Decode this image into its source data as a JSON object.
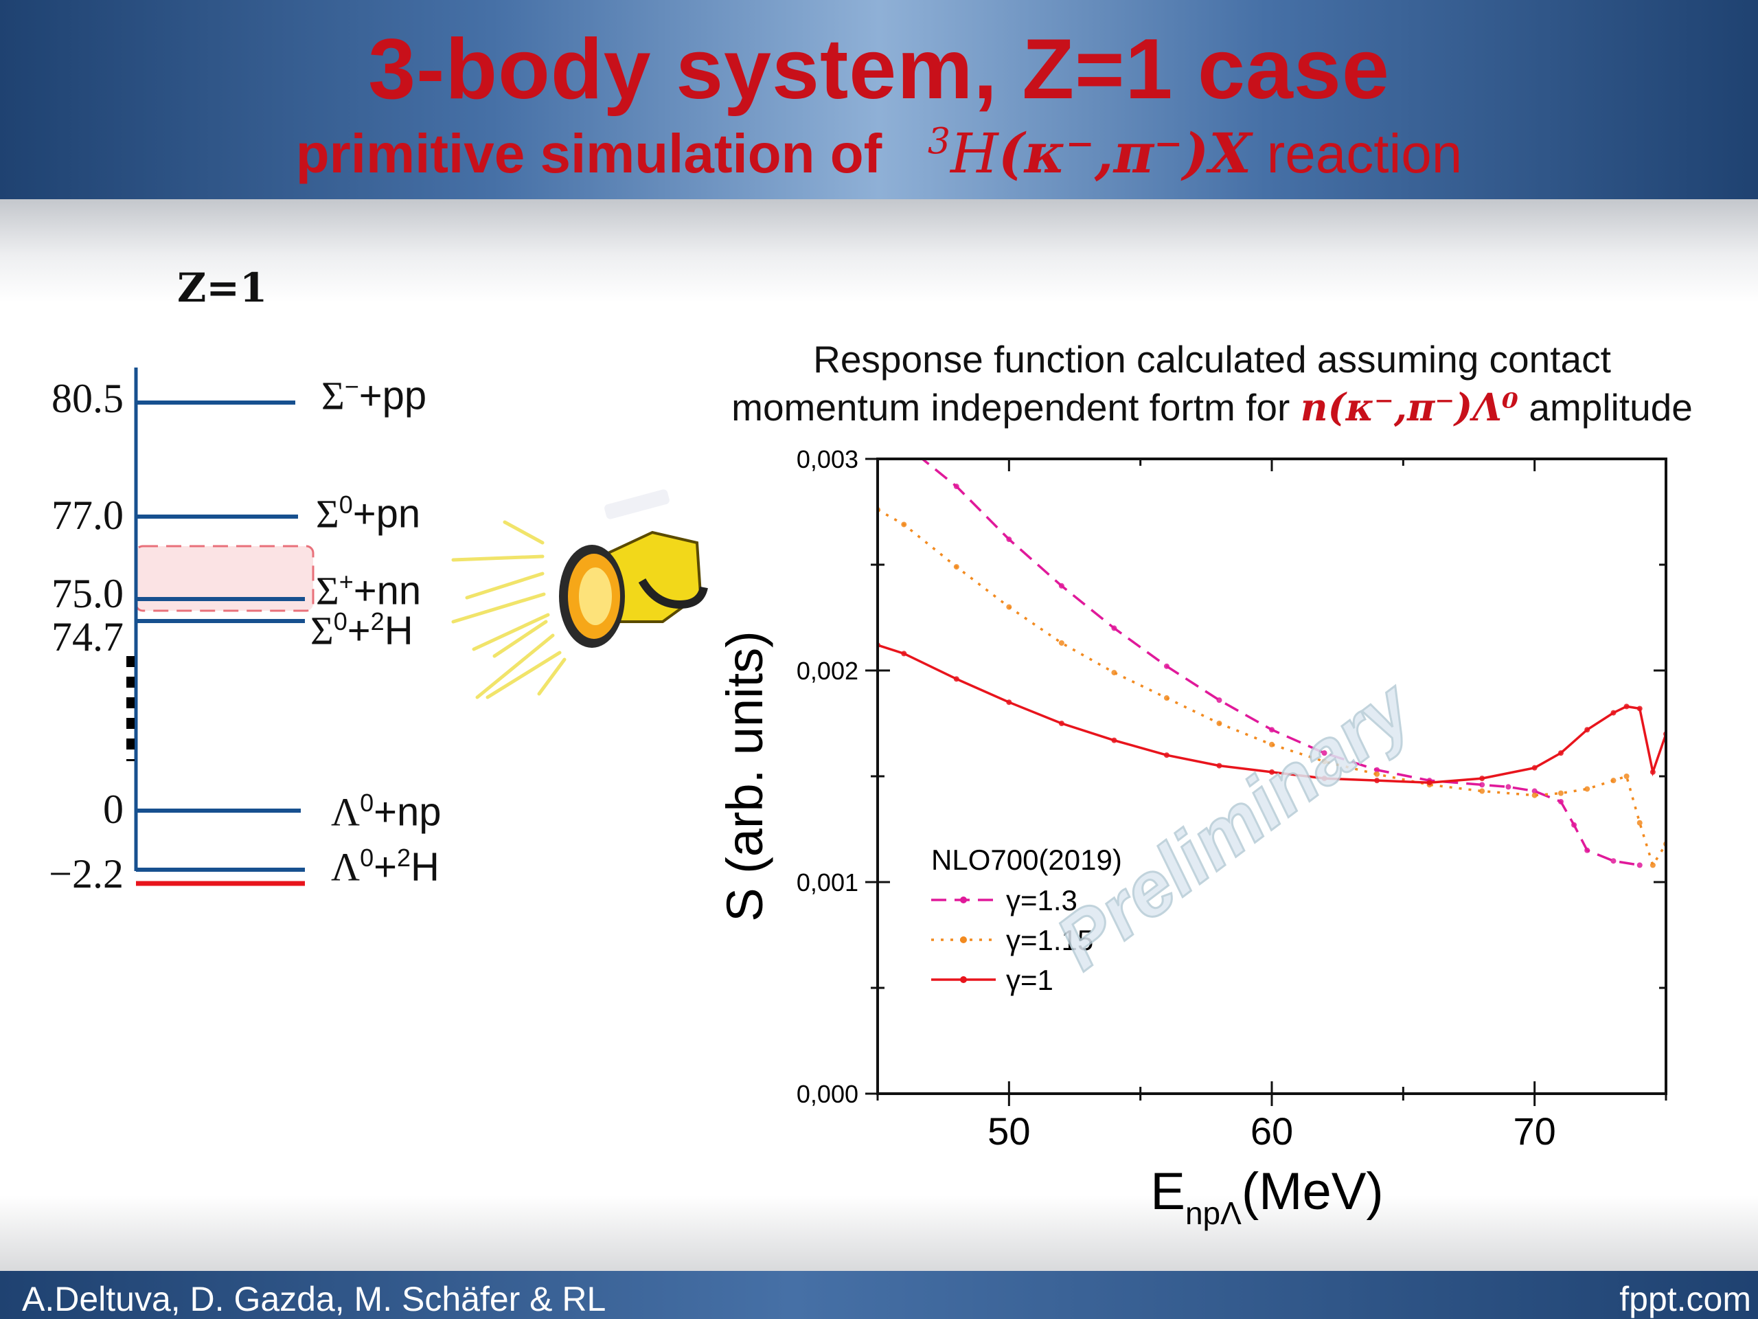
{
  "slide": {
    "title": "3-body system, Z=1 case",
    "subtitle_prefix": "primitive simulation of",
    "reaction_mass": "3",
    "reaction_nucleus": "H",
    "reaction_core": "(κ⁻,π⁻)",
    "reaction_final": "X",
    "subtitle_suffix": "reaction",
    "authors": "A.Deltuva, D. Gazda, M. Schäfer & RL",
    "site": "fppt.com"
  },
  "level_scheme": {
    "heading": "Z=1",
    "energies": [
      "80.5",
      "77.0",
      "75.0",
      "74.7",
      "0",
      "−2.2"
    ],
    "thresholds": [
      {
        "greek": "Σ",
        "sup": "−",
        "rest": "+pp"
      },
      {
        "greek": "Σ",
        "sup": "0",
        "rest": "+pn"
      },
      {
        "greek": "Σ",
        "sup": "+",
        "rest": "+nn"
      },
      {
        "greek": "Σ",
        "sup": "0",
        "rest": "+",
        "sup2": "2",
        "rest2": "H"
      },
      {
        "greek": "Λ",
        "sup": "0",
        "rest": "+np"
      },
      {
        "greek": "Λ",
        "sup": "0",
        "rest": "+",
        "sup2": "2",
        "rest2": "H"
      }
    ],
    "colors": {
      "level": "#17508f",
      "ground": "#e8141c",
      "highlight_fill": "#fbe3e4",
      "highlight_border": "#e8707a"
    }
  },
  "description": {
    "line1": "Response function calculated assuming contact",
    "line2_prefix": "momentum independent fortm for",
    "amplitude": "n(κ⁻,π⁻)Λ⁰",
    "line2_suffix": "amplitude"
  },
  "watermark": "Preliminary",
  "chart_data": {
    "type": "line",
    "xlabel_main": "E",
    "xlabel_sub": "npΛ",
    "xlabel_unit": "(MeV)",
    "ylabel": "S (arb. units)",
    "xlim": [
      45,
      75
    ],
    "ylim": [
      0,
      0.003
    ],
    "x_ticks": [
      "50",
      "60",
      "70"
    ],
    "x_tick_values": [
      50,
      60,
      70
    ],
    "y_ticks": [
      "0,000",
      "0,001",
      "0,002",
      "0,003"
    ],
    "y_tick_values": [
      0,
      0.001,
      0.002,
      0.003
    ],
    "legend_title": "NLO700(2019)",
    "legend_position": "lower-left",
    "series": [
      {
        "name": "γ=1.3",
        "color": "#e0199a",
        "style": "dashed",
        "x": [
          46.5,
          48,
          50,
          52,
          54,
          56,
          58,
          60,
          62,
          64,
          66,
          68,
          69,
          70,
          71,
          71.5,
          72,
          73,
          74
        ],
        "y": [
          0.00302,
          0.00287,
          0.00262,
          0.0024,
          0.0022,
          0.00202,
          0.00186,
          0.00172,
          0.00161,
          0.00153,
          0.00148,
          0.00146,
          0.00145,
          0.00143,
          0.00138,
          0.00127,
          0.00115,
          0.0011,
          0.00108
        ]
      },
      {
        "name": "γ=1.15",
        "color": "#f28a1f",
        "style": "dotted",
        "x": [
          45,
          46,
          48,
          50,
          52,
          54,
          56,
          58,
          60,
          62,
          64,
          66,
          68,
          70,
          71,
          72,
          73,
          73.5,
          74,
          74.5,
          75
        ],
        "y": [
          0.00276,
          0.00269,
          0.00249,
          0.0023,
          0.00213,
          0.00199,
          0.00187,
          0.00175,
          0.00165,
          0.00157,
          0.00151,
          0.00146,
          0.00143,
          0.00141,
          0.00142,
          0.00144,
          0.00148,
          0.0015,
          0.00128,
          0.00108,
          0.00118
        ]
      },
      {
        "name": "γ=1",
        "color": "#e8141c",
        "style": "solid",
        "x": [
          45,
          46,
          48,
          50,
          52,
          54,
          56,
          58,
          60,
          62,
          64,
          66,
          68,
          70,
          71,
          72,
          73,
          73.5,
          74,
          74.5,
          75
        ],
        "y": [
          0.00212,
          0.00208,
          0.00196,
          0.00185,
          0.00175,
          0.00167,
          0.0016,
          0.00155,
          0.00152,
          0.00149,
          0.00148,
          0.00147,
          0.00149,
          0.00154,
          0.00161,
          0.00172,
          0.0018,
          0.00183,
          0.00182,
          0.00152,
          0.0017
        ]
      }
    ]
  }
}
